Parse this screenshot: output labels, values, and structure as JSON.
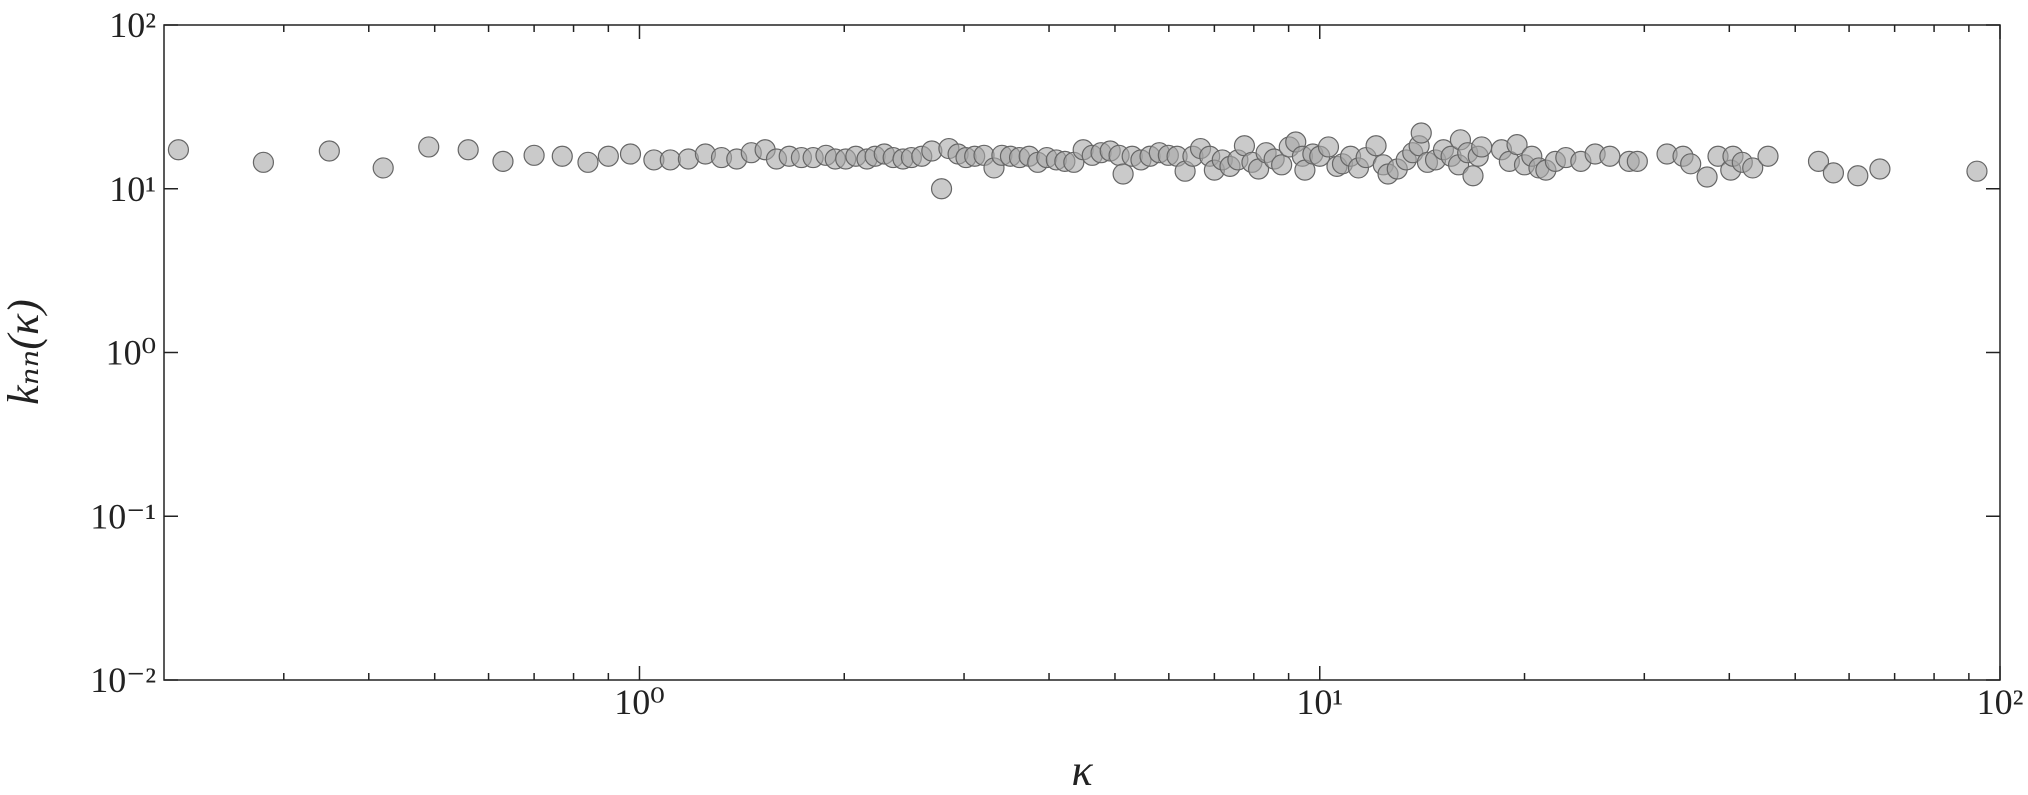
{
  "chart_data": {
    "type": "scatter",
    "x_label": "κ",
    "y_label": "kₙₙ(κ)",
    "log_x": true,
    "log_y": true,
    "xlim": [
      0.2,
      100
    ],
    "ylim": [
      0.01,
      100
    ],
    "xticks": [
      {
        "value": 1,
        "label": "10⁰"
      },
      {
        "value": 10,
        "label": "10¹"
      },
      {
        "value": 100,
        "label": "10²"
      }
    ],
    "xminorticks": [
      0.3,
      0.4,
      0.5,
      0.6,
      0.7,
      0.8,
      0.9,
      2,
      3,
      4,
      5,
      6,
      7,
      8,
      9,
      20,
      30,
      40,
      50,
      60,
      70,
      80,
      90
    ],
    "yticks": [
      {
        "value": 0.01,
        "label": "10⁻²"
      },
      {
        "value": 0.1,
        "label": "10⁻¹"
      },
      {
        "value": 1,
        "label": "10⁰"
      },
      {
        "value": 10,
        "label": "10¹"
      },
      {
        "value": 100,
        "label": "10²"
      }
    ],
    "color": "#a6a6a6",
    "edge_color": "#666666",
    "x": [
      0.21,
      0.28,
      0.35,
      0.42,
      0.49,
      0.56,
      0.63,
      0.7,
      0.77,
      0.84,
      0.9,
      0.97,
      1.05,
      1.11,
      1.18,
      1.25,
      1.32,
      1.39,
      1.46,
      1.53,
      1.59,
      1.66,
      1.73,
      1.8,
      1.88,
      1.94,
      2.01,
      2.08,
      2.16,
      2.22,
      2.29,
      2.36,
      2.44,
      2.51,
      2.6,
      2.69,
      2.78,
      2.85,
      2.94,
      3.02,
      3.11,
      3.21,
      3.32,
      3.41,
      3.51,
      3.62,
      3.74,
      3.85,
      3.97,
      4.1,
      4.22,
      4.35,
      4.49,
      4.63,
      4.77,
      4.92,
      5.07,
      5.14,
      5.3,
      5.46,
      5.63,
      5.81,
      5.99,
      6.17,
      6.34,
      6.51,
      6.68,
      6.89,
      7.0,
      7.19,
      7.38,
      7.58,
      7.75,
      7.95,
      8.13,
      8.34,
      8.57,
      8.79,
      9.02,
      9.22,
      9.43,
      9.51,
      9.77,
      10.0,
      10.3,
      10.6,
      10.8,
      11.1,
      11.4,
      11.7,
      12.1,
      12.4,
      12.6,
      13.0,
      13.4,
      13.7,
      14.0,
      14.1,
      14.4,
      14.8,
      15.2,
      15.6,
      16.0,
      16.1,
      16.5,
      16.8,
      17.1,
      17.3,
      18.5,
      19.0,
      19.5,
      20.0,
      20.5,
      21.0,
      21.5,
      22.2,
      23.0,
      24.2,
      25.4,
      26.7,
      28.5,
      29.3,
      32.4,
      34.2,
      35.1,
      37.1,
      38.5,
      40.2,
      40.5,
      41.8,
      43.3,
      45.6,
      54.1,
      56.9,
      61.8,
      66.6,
      92.5
    ],
    "y": [
      17.3,
      14.5,
      17,
      13.4,
      18,
      17.3,
      14.7,
      16,
      15.8,
      14.5,
      15.8,
      16.3,
      15,
      15,
      15.2,
      16.3,
      15.5,
      15.2,
      16.6,
      17.3,
      15.2,
      15.8,
      15.5,
      15.5,
      16,
      15.2,
      15.2,
      15.8,
      15.2,
      15.8,
      16.3,
      15.5,
      15.2,
      15.5,
      15.8,
      17,
      10,
      17.6,
      16.3,
      15.5,
      15.8,
      16,
      13.4,
      16,
      15.8,
      15.5,
      15.8,
      14.5,
      15.5,
      15,
      14.7,
      14.5,
      17.3,
      16,
      16.6,
      17,
      16,
      12.3,
      15.8,
      15,
      15.8,
      16.6,
      16,
      15.8,
      12.8,
      15.8,
      17.6,
      15.8,
      13,
      15,
      13.7,
      15,
      18.3,
      14.5,
      13.2,
      16.6,
      15.2,
      14,
      18,
      19.3,
      15.8,
      13,
      16.3,
      15.8,
      18,
      13.7,
      14.2,
      15.8,
      13.4,
      15.5,
      18.3,
      14,
      12.3,
      13.2,
      15,
      16.6,
      18.3,
      21.9,
      14.5,
      15,
      17.3,
      15.8,
      14,
      19.9,
      16.6,
      12,
      15.8,
      18,
      17.3,
      14.7,
      18.6,
      14,
      15.8,
      13.4,
      13,
      14.7,
      15.5,
      14.7,
      16.3,
      15.8,
      14.7,
      14.7,
      16.3,
      15.8,
      14.2,
      11.8,
      15.8,
      13,
      15.8,
      14.5,
      13.4,
      15.8,
      14.7,
      12.5,
      12,
      13.2,
      12.8
    ]
  }
}
